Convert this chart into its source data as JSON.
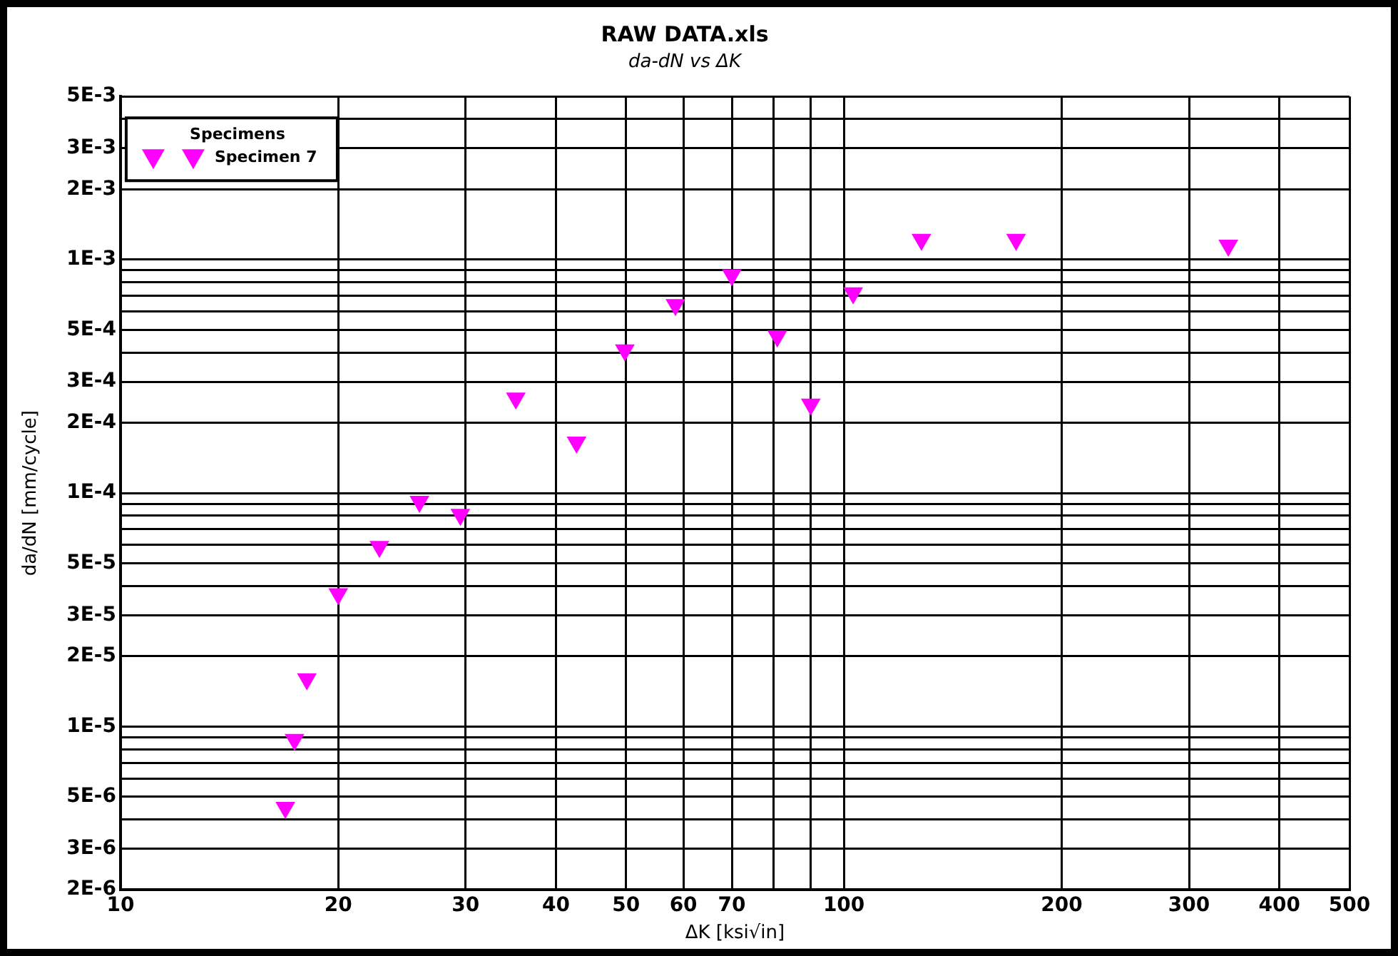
{
  "chart_data": {
    "type": "scatter",
    "title": "RAW DATA.xls",
    "subtitle": "da-dN vs ΔK",
    "xlabel": "ΔK [ksi√in]",
    "ylabel": "da/dN [mm/cycle]",
    "legend_title": "Specimens",
    "legend": "top left",
    "log": "xy",
    "grid": true,
    "marker": "triangle",
    "xlim": [
      10,
      500
    ],
    "ylim": [
      2e-06,
      0.005
    ],
    "xticks": [
      10,
      20,
      30,
      40,
      50,
      60,
      70,
      {
        "value": 80,
        "label": null
      },
      {
        "value": 90,
        "label": null
      },
      100,
      200,
      300,
      400,
      500
    ],
    "yticks": [
      {
        "value": 2e-06,
        "label": "2E-6"
      },
      {
        "value": 3e-06,
        "label": "3E-6"
      },
      {
        "value": 4e-06,
        "label": null
      },
      {
        "value": 5e-06,
        "label": "5E-6"
      },
      {
        "value": 6e-06,
        "label": null
      },
      {
        "value": 7e-06,
        "label": null
      },
      {
        "value": 8e-06,
        "label": null
      },
      {
        "value": 9e-06,
        "label": null
      },
      {
        "value": 1e-05,
        "label": "1E-5"
      },
      {
        "value": 2e-05,
        "label": "2E-5"
      },
      {
        "value": 3e-05,
        "label": "3E-5"
      },
      {
        "value": 4e-05,
        "label": null
      },
      {
        "value": 5e-05,
        "label": "5E-5"
      },
      {
        "value": 6e-05,
        "label": null
      },
      {
        "value": 7e-05,
        "label": null
      },
      {
        "value": 8e-05,
        "label": null
      },
      {
        "value": 9e-05,
        "label": null
      },
      {
        "value": 0.0001,
        "label": "1E-4"
      },
      {
        "value": 0.0002,
        "label": "2E-4"
      },
      {
        "value": 0.0003,
        "label": "3E-4"
      },
      {
        "value": 0.0004,
        "label": null
      },
      {
        "value": 0.0005,
        "label": "5E-4"
      },
      {
        "value": 0.0006,
        "label": null
      },
      {
        "value": 0.0007,
        "label": null
      },
      {
        "value": 0.0008,
        "label": null
      },
      {
        "value": 0.0009,
        "label": null
      },
      {
        "value": 0.001,
        "label": "1E-3"
      },
      {
        "value": 0.002,
        "label": "2E-3"
      },
      {
        "value": 0.003,
        "label": "3E-3"
      },
      {
        "value": 0.004,
        "label": null
      },
      {
        "value": 0.005,
        "label": "5E-3"
      }
    ],
    "series": [
      {
        "name": "Specimen 7",
        "color": "#ff00ff",
        "x": [
          16.9,
          17.4,
          18.1,
          20.0,
          22.8,
          25.9,
          29.5,
          35.2,
          42.7,
          49.8,
          58.5,
          70,
          80.9,
          90,
          103,
          128,
          173,
          340
        ],
        "values": [
          4.5e-06,
          8.8e-06,
          1.6e-05,
          3.7e-05,
          5.9e-05,
          9.2e-05,
          8.1e-05,
          0.000255,
          0.000165,
          0.00041,
          0.00064,
          0.00086,
          0.00047,
          0.00024,
          0.00072,
          0.00122,
          0.00122,
          0.00115
        ]
      }
    ]
  }
}
